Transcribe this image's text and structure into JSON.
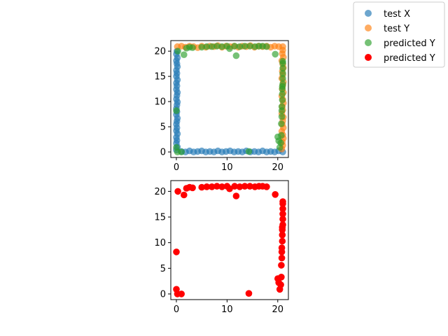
{
  "colors": {
    "test_x": "#1f77b4",
    "test_y": "#ff7f0e",
    "predicted_y_green": "#2ca02c",
    "predicted_y_red": "#ff0000"
  },
  "legend": {
    "placement": "upper-right-outside",
    "entries": [
      {
        "label": "test X",
        "color_key": "test_x",
        "alpha": 0.65
      },
      {
        "label": "test Y",
        "color_key": "test_y",
        "alpha": 0.65
      },
      {
        "label": "predicted Y",
        "color_key": "predicted_y_green",
        "alpha": 0.65
      },
      {
        "label": "predicted Y",
        "color_key": "predicted_y_red",
        "alpha": 1.0
      }
    ]
  },
  "chart_data": [
    {
      "type": "scatter",
      "title": "",
      "xlabel": "",
      "ylabel": "",
      "xlim": [
        -1.1,
        22.1
      ],
      "ylim": [
        -1.1,
        22.1
      ],
      "xticks": [
        0,
        10,
        20
      ],
      "yticks": [
        0,
        5,
        10,
        15,
        20
      ],
      "grid": false,
      "series": [
        {
          "name": "test X",
          "color_key": "test_x",
          "alpha": 0.65,
          "points": [
            [
              0.1,
              20.0
            ],
            [
              0.0,
              19.4
            ],
            [
              0.2,
              18.7
            ],
            [
              0.0,
              18.1
            ],
            [
              0.1,
              17.5
            ],
            [
              0.2,
              16.9
            ],
            [
              0.0,
              16.2
            ],
            [
              0.1,
              15.6
            ],
            [
              0.0,
              15.0
            ],
            [
              0.2,
              14.3
            ],
            [
              0.0,
              13.7
            ],
            [
              0.1,
              13.1
            ],
            [
              0.0,
              12.4
            ],
            [
              0.2,
              11.8
            ],
            [
              0.1,
              11.2
            ],
            [
              0.0,
              10.5
            ],
            [
              0.2,
              9.9
            ],
            [
              0.1,
              9.3
            ],
            [
              0.0,
              8.6
            ],
            [
              0.1,
              8.0
            ],
            [
              0.0,
              7.4
            ],
            [
              0.2,
              6.7
            ],
            [
              0.1,
              6.1
            ],
            [
              0.0,
              5.5
            ],
            [
              0.1,
              4.8
            ],
            [
              0.0,
              4.2
            ],
            [
              0.2,
              3.6
            ],
            [
              0.0,
              2.9
            ],
            [
              0.1,
              2.3
            ],
            [
              0.0,
              1.7
            ],
            [
              0.2,
              1.0
            ],
            [
              0.0,
              0.4
            ],
            [
              1.0,
              0.1
            ],
            [
              1.8,
              0.0
            ],
            [
              2.6,
              0.2
            ],
            [
              3.4,
              0.0
            ],
            [
              4.2,
              0.1
            ],
            [
              5.0,
              0.2
            ],
            [
              5.8,
              0.0
            ],
            [
              6.6,
              0.1
            ],
            [
              7.4,
              0.0
            ],
            [
              8.2,
              0.2
            ],
            [
              9.0,
              0.0
            ],
            [
              9.8,
              0.1
            ],
            [
              10.6,
              0.2
            ],
            [
              11.4,
              0.0
            ],
            [
              12.2,
              0.1
            ],
            [
              13.0,
              0.0
            ],
            [
              13.8,
              0.2
            ],
            [
              14.6,
              0.0
            ],
            [
              15.4,
              0.1
            ],
            [
              16.2,
              0.0
            ],
            [
              17.0,
              0.2
            ],
            [
              17.8,
              0.0
            ],
            [
              18.6,
              0.1
            ],
            [
              19.4,
              0.0
            ],
            [
              20.2,
              0.2
            ],
            [
              21.0,
              0.0
            ]
          ]
        },
        {
          "name": "test Y",
          "color_key": "test_y",
          "alpha": 0.65,
          "points": [
            [
              0.2,
              20.9
            ],
            [
              1.0,
              21.0
            ],
            [
              1.8,
              20.8
            ],
            [
              2.6,
              21.0
            ],
            [
              3.4,
              20.9
            ],
            [
              4.2,
              20.7
            ],
            [
              5.0,
              21.0
            ],
            [
              5.8,
              20.8
            ],
            [
              6.6,
              21.0
            ],
            [
              7.4,
              20.9
            ],
            [
              8.2,
              21.1
            ],
            [
              9.0,
              20.8
            ],
            [
              9.8,
              21.0
            ],
            [
              10.6,
              20.9
            ],
            [
              11.4,
              21.0
            ],
            [
              12.2,
              20.8
            ],
            [
              13.0,
              21.0
            ],
            [
              13.8,
              20.9
            ],
            [
              14.6,
              21.1
            ],
            [
              15.4,
              20.8
            ],
            [
              16.2,
              21.0
            ],
            [
              17.0,
              20.9
            ],
            [
              17.8,
              21.0
            ],
            [
              18.6,
              20.8
            ],
            [
              19.4,
              21.0
            ],
            [
              20.2,
              20.9
            ],
            [
              21.0,
              20.9
            ],
            [
              21.0,
              20.2
            ],
            [
              20.9,
              19.5
            ],
            [
              21.1,
              18.8
            ],
            [
              20.8,
              18.1
            ],
            [
              21.0,
              17.4
            ],
            [
              21.1,
              16.7
            ],
            [
              20.9,
              16.0
            ],
            [
              21.0,
              15.3
            ],
            [
              20.8,
              14.6
            ],
            [
              21.1,
              13.9
            ],
            [
              21.0,
              13.2
            ],
            [
              20.9,
              12.5
            ],
            [
              21.1,
              11.8
            ],
            [
              20.8,
              11.1
            ],
            [
              21.0,
              10.4
            ],
            [
              21.1,
              9.7
            ],
            [
              20.9,
              9.0
            ],
            [
              21.0,
              8.3
            ],
            [
              20.8,
              7.6
            ],
            [
              21.1,
              6.9
            ],
            [
              21.0,
              6.2
            ],
            [
              20.9,
              5.5
            ],
            [
              21.1,
              4.8
            ],
            [
              20.8,
              4.1
            ],
            [
              21.0,
              3.4
            ],
            [
              21.1,
              2.7
            ],
            [
              20.9,
              2.0
            ],
            [
              21.0,
              1.3
            ],
            [
              20.8,
              0.6
            ]
          ]
        },
        {
          "name": "predicted Y",
          "color_key": "predicted_y_green",
          "alpha": 0.65,
          "points": [
            [
              0.3,
              20.0
            ],
            [
              0.0,
              8.2
            ],
            [
              0.0,
              0.9
            ],
            [
              0.2,
              0.0
            ],
            [
              1.0,
              0.0
            ],
            [
              1.5,
              19.3
            ],
            [
              2.0,
              20.6
            ],
            [
              2.6,
              20.8
            ],
            [
              3.2,
              20.7
            ],
            [
              5.0,
              20.8
            ],
            [
              6.0,
              20.9
            ],
            [
              7.0,
              20.9
            ],
            [
              8.0,
              21.0
            ],
            [
              9.0,
              20.9
            ],
            [
              10.0,
              21.0
            ],
            [
              10.5,
              20.5
            ],
            [
              11.5,
              21.0
            ],
            [
              11.8,
              19.1
            ],
            [
              12.5,
              20.9
            ],
            [
              13.5,
              21.0
            ],
            [
              14.3,
              0.1
            ],
            [
              14.5,
              21.0
            ],
            [
              15.5,
              20.9
            ],
            [
              16.3,
              21.0
            ],
            [
              17.0,
              21.0
            ],
            [
              17.8,
              20.9
            ],
            [
              19.5,
              19.4
            ],
            [
              20.0,
              3.0
            ],
            [
              20.2,
              2.2
            ],
            [
              20.4,
              0.9
            ],
            [
              20.6,
              1.8
            ],
            [
              20.7,
              5.6
            ],
            [
              20.8,
              7.0
            ],
            [
              20.8,
              9.0
            ],
            [
              20.9,
              10.3
            ],
            [
              20.9,
              11.5
            ],
            [
              20.9,
              12.5
            ],
            [
              21.0,
              13.5
            ],
            [
              21.0,
              14.6
            ],
            [
              21.0,
              15.6
            ],
            [
              21.0,
              16.6
            ],
            [
              21.0,
              17.6
            ],
            [
              21.0,
              18.0
            ],
            [
              20.9,
              13.0
            ],
            [
              20.8,
              8.2
            ],
            [
              20.7,
              3.3
            ]
          ]
        }
      ]
    },
    {
      "type": "scatter",
      "title": "",
      "xlabel": "",
      "ylabel": "",
      "xlim": [
        -1.1,
        22.1
      ],
      "ylim": [
        -1.1,
        22.1
      ],
      "xticks": [
        0,
        10,
        20
      ],
      "yticks": [
        0,
        5,
        10,
        15,
        20
      ],
      "grid": false,
      "series": [
        {
          "name": "predicted Y",
          "color_key": "predicted_y_red",
          "alpha": 1.0,
          "points": [
            [
              0.3,
              20.0
            ],
            [
              0.0,
              8.2
            ],
            [
              0.0,
              0.9
            ],
            [
              0.2,
              0.0
            ],
            [
              1.0,
              0.0
            ],
            [
              1.5,
              19.3
            ],
            [
              2.0,
              20.6
            ],
            [
              2.6,
              20.8
            ],
            [
              3.2,
              20.7
            ],
            [
              5.0,
              20.8
            ],
            [
              6.0,
              20.9
            ],
            [
              7.0,
              20.9
            ],
            [
              8.0,
              21.0
            ],
            [
              9.0,
              20.9
            ],
            [
              10.0,
              21.0
            ],
            [
              10.5,
              20.5
            ],
            [
              11.5,
              21.0
            ],
            [
              11.8,
              19.1
            ],
            [
              12.5,
              20.9
            ],
            [
              13.5,
              21.0
            ],
            [
              14.3,
              0.1
            ],
            [
              14.5,
              21.0
            ],
            [
              15.5,
              20.9
            ],
            [
              16.3,
              21.0
            ],
            [
              17.0,
              21.0
            ],
            [
              17.8,
              20.9
            ],
            [
              19.5,
              19.4
            ],
            [
              20.0,
              3.0
            ],
            [
              20.2,
              2.2
            ],
            [
              20.4,
              0.9
            ],
            [
              20.6,
              1.8
            ],
            [
              20.7,
              5.6
            ],
            [
              20.8,
              7.0
            ],
            [
              20.8,
              9.0
            ],
            [
              20.9,
              10.3
            ],
            [
              20.9,
              11.5
            ],
            [
              20.9,
              12.5
            ],
            [
              21.0,
              13.5
            ],
            [
              21.0,
              14.6
            ],
            [
              21.0,
              15.6
            ],
            [
              21.0,
              16.6
            ],
            [
              21.0,
              17.6
            ],
            [
              21.0,
              18.0
            ],
            [
              20.9,
              13.0
            ],
            [
              20.8,
              8.2
            ],
            [
              20.7,
              3.3
            ]
          ]
        }
      ]
    }
  ]
}
